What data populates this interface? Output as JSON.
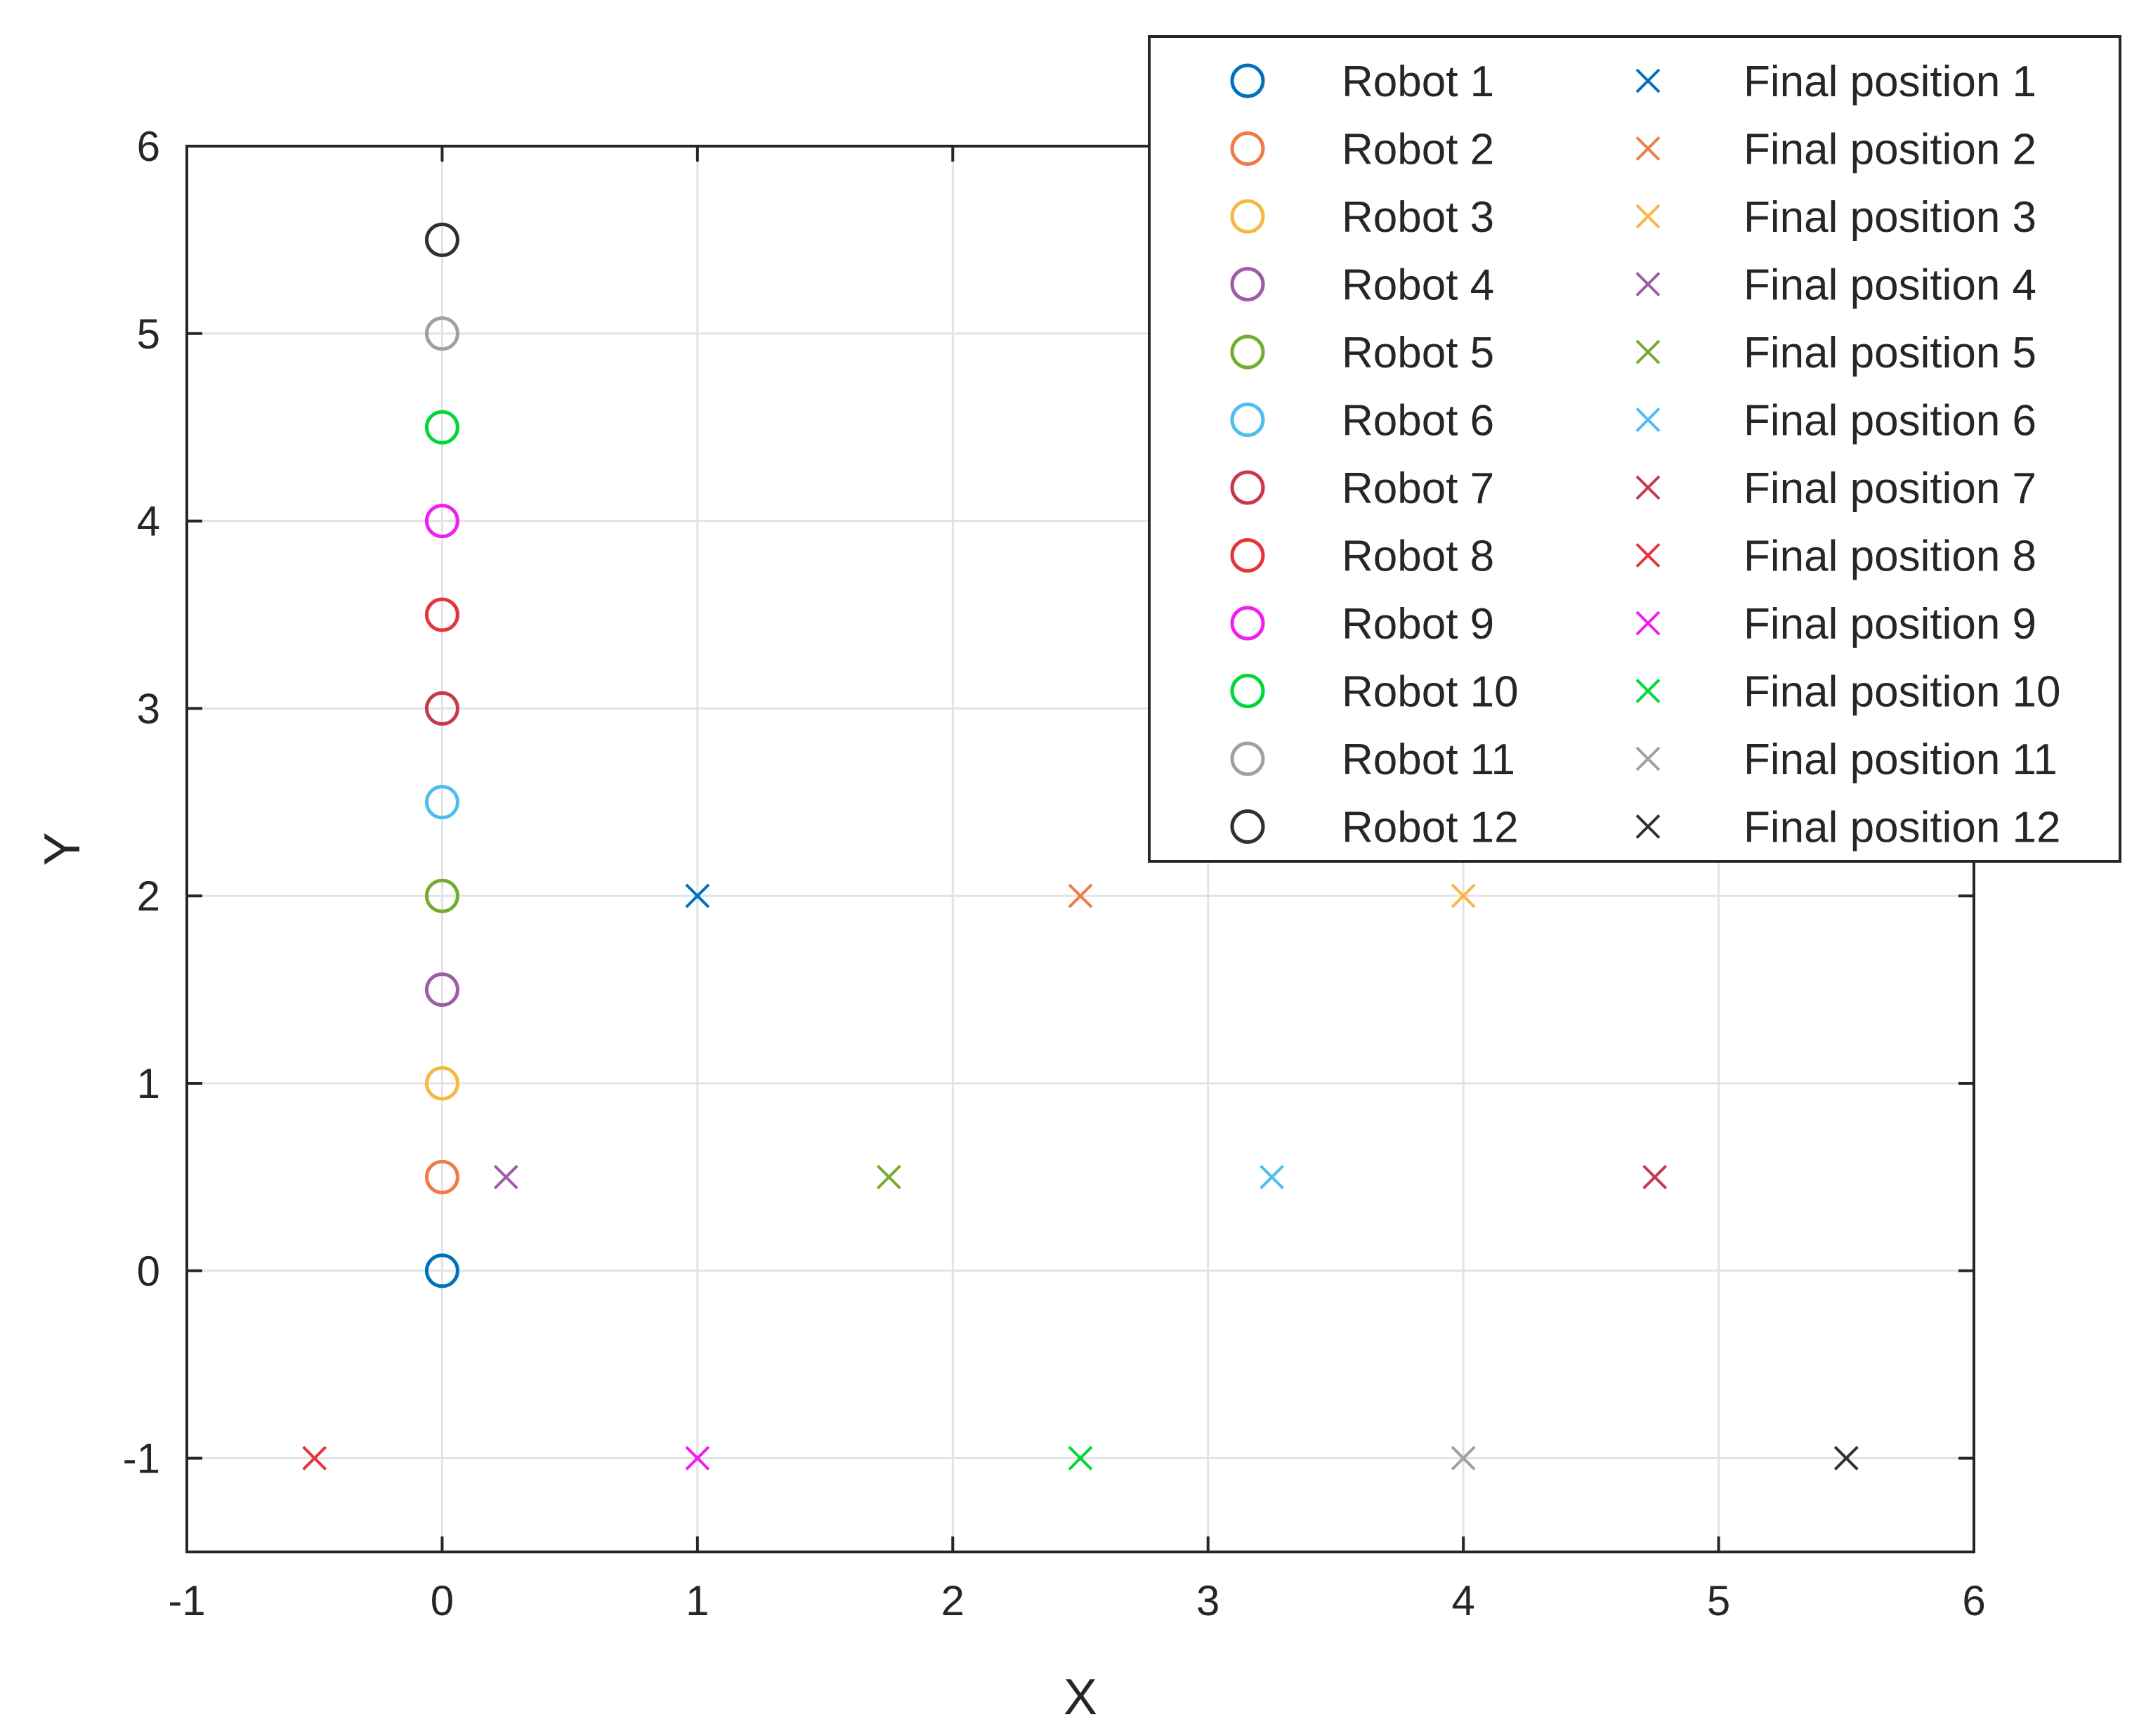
{
  "chart_data": {
    "type": "scatter",
    "xlabel": "X",
    "ylabel": "Y",
    "xlim": [
      -1,
      6
    ],
    "ylim": [
      -1.5,
      6
    ],
    "xticks": [
      "-1",
      "0",
      "1",
      "2",
      "3",
      "4",
      "5",
      "6"
    ],
    "yticks": [
      "-1",
      "0",
      "1",
      "2",
      "3",
      "4",
      "5",
      "6"
    ],
    "grid": true,
    "legend": "top-right",
    "series": [
      {
        "name": "Robot 1",
        "marker": "circle",
        "color": "#0072BD",
        "x": [
          0
        ],
        "y": [
          0
        ]
      },
      {
        "name": "Robot 2",
        "marker": "circle",
        "color": "#F07A4A",
        "x": [
          0
        ],
        "y": [
          0.5
        ]
      },
      {
        "name": "Robot 3",
        "marker": "circle",
        "color": "#F5B942",
        "x": [
          0
        ],
        "y": [
          1
        ]
      },
      {
        "name": "Robot 4",
        "marker": "circle",
        "color": "#9E5BA7",
        "x": [
          0
        ],
        "y": [
          1.5
        ]
      },
      {
        "name": "Robot 5",
        "marker": "circle",
        "color": "#77AC30",
        "x": [
          0
        ],
        "y": [
          2
        ]
      },
      {
        "name": "Robot 6",
        "marker": "circle",
        "color": "#4DBEEE",
        "x": [
          0
        ],
        "y": [
          2.5
        ]
      },
      {
        "name": "Robot 7",
        "marker": "circle",
        "color": "#C8394A",
        "x": [
          0
        ],
        "y": [
          3
        ]
      },
      {
        "name": "Robot 8",
        "marker": "circle",
        "color": "#E8333A",
        "x": [
          0
        ],
        "y": [
          3.5
        ]
      },
      {
        "name": "Robot 9",
        "marker": "circle",
        "color": "#F01EF0",
        "x": [
          0
        ],
        "y": [
          4
        ]
      },
      {
        "name": "Robot 10",
        "marker": "circle",
        "color": "#00D83A",
        "x": [
          0
        ],
        "y": [
          4.5
        ]
      },
      {
        "name": "Robot 11",
        "marker": "circle",
        "color": "#A0A0A0",
        "x": [
          0
        ],
        "y": [
          5
        ]
      },
      {
        "name": "Robot 12",
        "marker": "circle",
        "color": "#303030",
        "x": [
          0
        ],
        "y": [
          5.5
        ]
      },
      {
        "name": "Final position 1",
        "marker": "x",
        "color": "#0072BD",
        "x": [
          1
        ],
        "y": [
          2
        ]
      },
      {
        "name": "Final position 2",
        "marker": "x",
        "color": "#F07A4A",
        "x": [
          2.5
        ],
        "y": [
          2
        ]
      },
      {
        "name": "Final position 3",
        "marker": "x",
        "color": "#F5B942",
        "x": [
          4
        ],
        "y": [
          2
        ]
      },
      {
        "name": "Final position 4",
        "marker": "x",
        "color": "#9E5BA7",
        "x": [
          0.25
        ],
        "y": [
          0.5
        ]
      },
      {
        "name": "Final position 5",
        "marker": "x",
        "color": "#77AC30",
        "x": [
          1.75
        ],
        "y": [
          0.5
        ]
      },
      {
        "name": "Final position 6",
        "marker": "x",
        "color": "#4DBEEE",
        "x": [
          3.25
        ],
        "y": [
          0.5
        ]
      },
      {
        "name": "Final position 7",
        "marker": "x",
        "color": "#C8394A",
        "x": [
          4.75
        ],
        "y": [
          0.5
        ]
      },
      {
        "name": "Final position 8",
        "marker": "x",
        "color": "#E8333A",
        "x": [
          -0.5
        ],
        "y": [
          -1
        ]
      },
      {
        "name": "Final position 9",
        "marker": "x",
        "color": "#F01EF0",
        "x": [
          1
        ],
        "y": [
          -1
        ]
      },
      {
        "name": "Final position 10",
        "marker": "x",
        "color": "#00D83A",
        "x": [
          2.5
        ],
        "y": [
          -1
        ]
      },
      {
        "name": "Final position 11",
        "marker": "x",
        "color": "#A0A0A0",
        "x": [
          4
        ],
        "y": [
          -1
        ]
      },
      {
        "name": "Final position 12",
        "marker": "x",
        "color": "#303030",
        "x": [
          5.5
        ],
        "y": [
          -1
        ]
      }
    ]
  }
}
